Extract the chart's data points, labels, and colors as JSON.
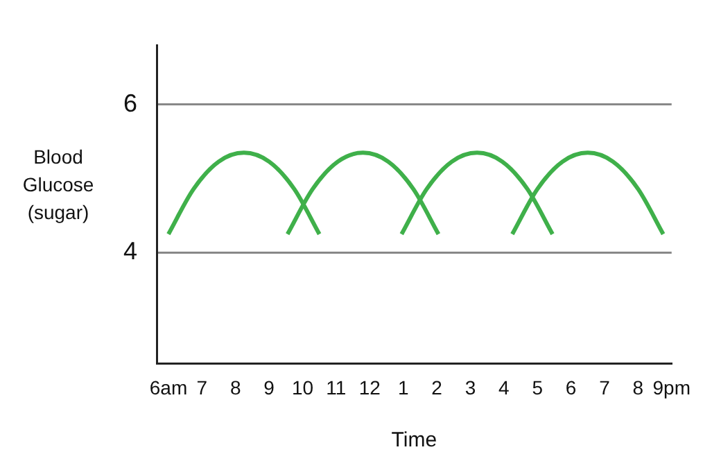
{
  "chart_data": {
    "type": "line",
    "xlabel": "Time",
    "ylabel": "Blood Glucose (sugar)",
    "xlim": [
      "--01-01T05:39",
      "--01-01T21:00"
    ],
    "ylim": [
      2.5,
      6.8
    ],
    "xticks": [
      {
        "value": "--01-01T06:00",
        "label": "6am"
      },
      {
        "value": "--01-01T07:00",
        "label": "7"
      },
      {
        "value": "--01-01T08:00",
        "label": "8"
      },
      {
        "value": "--01-01T09:00",
        "label": "9"
      },
      {
        "value": "--01-01T10:00",
        "label": "10"
      },
      {
        "value": "--01-01T11:00",
        "label": "11"
      },
      {
        "value": "--01-01T12:00",
        "label": "12"
      },
      {
        "value": "--01-01T13:00",
        "label": "1"
      },
      {
        "value": "--01-01T14:00",
        "label": "2"
      },
      {
        "value": "--01-01T15:00",
        "label": "3"
      },
      {
        "value": "--01-01T16:00",
        "label": "4"
      },
      {
        "value": "--01-01T17:00",
        "label": "5"
      },
      {
        "value": "--01-01T18:00",
        "label": "6"
      },
      {
        "value": "--01-01T19:00",
        "label": "7"
      },
      {
        "value": "--01-01T20:00",
        "label": "8"
      },
      {
        "value": "--01-01T21:00",
        "label": "9pm"
      }
    ],
    "yticks": [
      4,
      6
    ],
    "grid": "y",
    "legend": false,
    "marker": "none",
    "line_style": "solid",
    "series": [
      {
        "color": "#3fb04a",
        "x": [
          "--01-01T06:00",
          "--01-01T06:45",
          "--01-01T07:30",
          "--01-01T08:15",
          "--01-01T09:00",
          "--01-01T09:45",
          "--01-01T10:30"
        ],
        "values": [
          4.25,
          4.86,
          5.23,
          5.35,
          5.23,
          4.86,
          4.25
        ]
      },
      {
        "color": "#3fb04a",
        "x": [
          "--01-01T09:33",
          "--01-01T10:18",
          "--01-01T11:03",
          "--01-01T11:48",
          "--01-01T12:33",
          "--01-01T13:18",
          "--01-01T14:03"
        ],
        "values": [
          4.25,
          4.86,
          5.23,
          5.35,
          5.23,
          4.86,
          4.25
        ]
      },
      {
        "color": "#3fb04a",
        "x": [
          "--01-01T12:57",
          "--01-01T13:42",
          "--01-01T14:27",
          "--01-01T15:12",
          "--01-01T15:57",
          "--01-01T16:42",
          "--01-01T17:27"
        ],
        "values": [
          4.25,
          4.86,
          5.23,
          5.35,
          5.23,
          4.86,
          4.25
        ]
      },
      {
        "color": "#3fb04a",
        "x": [
          "--01-01T16:15",
          "--01-01T17:00",
          "--01-01T17:45",
          "--01-01T18:30",
          "--01-01T19:15",
          "--01-01T20:00",
          "--01-01T20:45"
        ],
        "values": [
          4.25,
          4.86,
          5.23,
          5.35,
          5.23,
          4.86,
          4.25
        ]
      }
    ]
  }
}
